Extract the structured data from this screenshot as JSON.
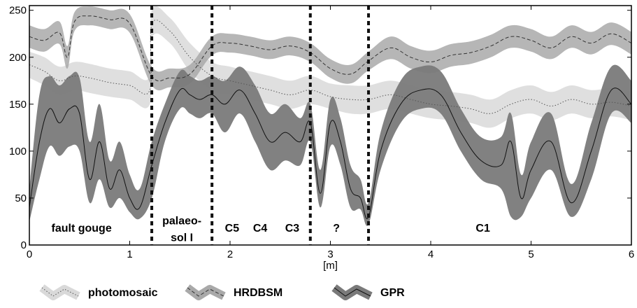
{
  "chart_data": {
    "type": "area",
    "xlabel": "[m]",
    "ylabel": "",
    "xlim": [
      0,
      6
    ],
    "ylim": [
      0,
      255
    ],
    "xticks": [
      "0",
      "1",
      "2",
      "3",
      "4",
      "5",
      "6"
    ],
    "yticks": [
      "0",
      "50",
      "100",
      "150",
      "200",
      "250"
    ],
    "boundaries": [
      1.22,
      1.82,
      2.8,
      3.38
    ],
    "annotations": [
      {
        "text": "fault gouge",
        "x": 0.52,
        "y": 14
      },
      {
        "text": "palaeo-",
        "x": 1.52,
        "y": 22
      },
      {
        "text": "sol I",
        "x": 1.52,
        "y": 4
      },
      {
        "text": "C5",
        "x": 2.02,
        "y": 14
      },
      {
        "text": "C4",
        "x": 2.3,
        "y": 14
      },
      {
        "text": "C3",
        "x": 2.62,
        "y": 14
      },
      {
        "text": "?",
        "x": 3.06,
        "y": 14
      },
      {
        "text": "C1",
        "x": 4.52,
        "y": 14
      }
    ],
    "series": [
      {
        "name": "photomosaic",
        "band_color": "#d9d9d9",
        "line_color": "#555555",
        "line_style": "dotted",
        "x": [
          0,
          0.15,
          0.3,
          0.45,
          0.6,
          0.8,
          1.0,
          1.2,
          1.22,
          1.4,
          1.6,
          1.82,
          2.0,
          2.2,
          2.4,
          2.6,
          2.8,
          3.0,
          3.2,
          3.38,
          3.6,
          3.8,
          4.0,
          4.2,
          4.4,
          4.6,
          4.8,
          5.0,
          5.2,
          5.4,
          5.6,
          5.8,
          6.0
        ],
        "mean": [
          192,
          185,
          175,
          180,
          178,
          173,
          170,
          165,
          235,
          228,
          200,
          180,
          175,
          170,
          165,
          160,
          165,
          158,
          155,
          155,
          160,
          155,
          150,
          148,
          145,
          140,
          150,
          155,
          148,
          155,
          150,
          152,
          148
        ],
        "lower": [
          178,
          170,
          160,
          165,
          162,
          158,
          155,
          150,
          220,
          215,
          185,
          165,
          160,
          155,
          150,
          145,
          150,
          145,
          140,
          140,
          145,
          140,
          135,
          133,
          130,
          125,
          135,
          140,
          133,
          140,
          135,
          137,
          133
        ],
        "upper": [
          206,
          200,
          190,
          195,
          193,
          188,
          185,
          180,
          250,
          242,
          215,
          195,
          190,
          185,
          180,
          175,
          180,
          172,
          170,
          170,
          175,
          170,
          165,
          163,
          160,
          155,
          165,
          170,
          163,
          170,
          165,
          167,
          163
        ]
      },
      {
        "name": "HRDBSM",
        "band_color": "#a9a9a9",
        "line_color": "#333333",
        "line_style": "dashed",
        "x": [
          0,
          0.15,
          0.3,
          0.38,
          0.45,
          0.6,
          0.8,
          1.0,
          1.22,
          1.4,
          1.6,
          1.82,
          2.0,
          2.2,
          2.4,
          2.6,
          2.8,
          3.0,
          3.2,
          3.38,
          3.6,
          3.8,
          4.0,
          4.2,
          4.4,
          4.6,
          4.8,
          5.0,
          5.2,
          5.4,
          5.6,
          5.8,
          6.0
        ],
        "mean": [
          222,
          218,
          226,
          200,
          238,
          244,
          240,
          236,
          180,
          178,
          182,
          212,
          215,
          212,
          208,
          212,
          205,
          188,
          182,
          196,
          210,
          200,
          195,
          202,
          205,
          212,
          222,
          218,
          210,
          222,
          215,
          225,
          215
        ],
        "lower": [
          210,
          206,
          214,
          188,
          228,
          234,
          230,
          226,
          170,
          168,
          172,
          202,
          205,
          202,
          198,
          202,
          195,
          178,
          172,
          186,
          198,
          188,
          183,
          190,
          193,
          200,
          210,
          206,
          198,
          210,
          203,
          213,
          203
        ],
        "upper": [
          234,
          230,
          238,
          212,
          248,
          254,
          250,
          246,
          190,
          188,
          192,
          222,
          225,
          222,
          218,
          222,
          215,
          198,
          192,
          206,
          222,
          212,
          207,
          214,
          217,
          224,
          234,
          230,
          222,
          234,
          227,
          237,
          227
        ]
      },
      {
        "name": "GPR",
        "band_color": "#7a7a7a",
        "line_color": "#111111",
        "line_style": "solid",
        "x": [
          0,
          0.1,
          0.2,
          0.3,
          0.4,
          0.5,
          0.6,
          0.7,
          0.8,
          0.9,
          1.0,
          1.1,
          1.22,
          1.35,
          1.5,
          1.6,
          1.7,
          1.82,
          1.95,
          2.1,
          2.25,
          2.4,
          2.55,
          2.7,
          2.8,
          2.9,
          3.0,
          3.1,
          3.2,
          3.3,
          3.38,
          3.5,
          3.7,
          3.9,
          4.1,
          4.3,
          4.5,
          4.7,
          4.8,
          4.9,
          5.0,
          5.2,
          5.4,
          5.6,
          5.8,
          6.0
        ],
        "mean": [
          40,
          110,
          145,
          130,
          145,
          140,
          70,
          110,
          60,
          80,
          50,
          40,
          85,
          130,
          165,
          160,
          155,
          160,
          150,
          165,
          140,
          110,
          120,
          110,
          130,
          55,
          130,
          110,
          60,
          50,
          30,
          100,
          150,
          165,
          160,
          120,
          90,
          85,
          110,
          50,
          80,
          110,
          45,
          100,
          165,
          150
        ],
        "lower": [
          25,
          70,
          105,
          95,
          105,
          100,
          45,
          70,
          40,
          50,
          35,
          28,
          50,
          110,
          145,
          140,
          135,
          140,
          120,
          140,
          110,
          80,
          90,
          85,
          110,
          40,
          105,
          85,
          40,
          38,
          22,
          80,
          130,
          145,
          140,
          100,
          70,
          60,
          30,
          30,
          50,
          80,
          30,
          70,
          140,
          130
        ],
        "upper": [
          60,
          160,
          180,
          170,
          180,
          178,
          110,
          150,
          90,
          110,
          75,
          60,
          110,
          150,
          185,
          180,
          175,
          180,
          175,
          190,
          170,
          140,
          150,
          135,
          150,
          80,
          155,
          135,
          85,
          70,
          45,
          120,
          175,
          190,
          185,
          145,
          115,
          115,
          140,
          75,
          110,
          140,
          65,
          130,
          190,
          175
        ]
      }
    ],
    "legend": {
      "position": "bottom",
      "entries": [
        "photomosaic",
        "HRDBSM",
        "GPR"
      ]
    },
    "grid": false
  }
}
